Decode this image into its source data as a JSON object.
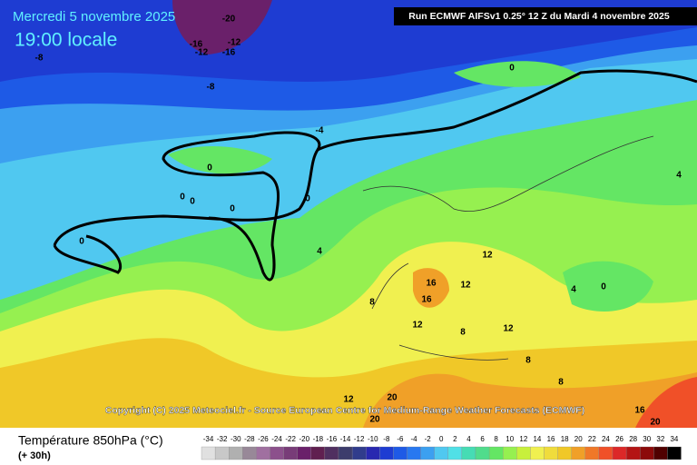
{
  "header": {
    "date": "Mercredi 5 novembre 2025",
    "time": "19:00 locale",
    "run": "Run ECMWF AIFSv1 0.25° 12 Z du Mardi 4 novembre 2025"
  },
  "copyright": "Copyright (C) 2025 Meteociel.fr - Source European Centre for Medium-Range Weather Forecasts (ECMWF)",
  "map_labels": [
    -20,
    -16,
    -12,
    -12,
    -16,
    -8,
    -8,
    -4,
    0,
    0,
    0,
    0,
    0,
    0,
    0,
    4,
    4,
    8,
    12,
    12,
    16,
    16,
    12,
    12,
    8,
    8,
    8,
    4,
    0,
    12,
    20,
    20,
    16,
    20
  ],
  "legend": {
    "title": "Température 850hPa (°C)",
    "subtitle": "(+ 30h)",
    "scale": [
      -34,
      -32,
      -30,
      -28,
      -26,
      -24,
      -22,
      -20,
      -18,
      -16,
      -14,
      -12,
      -10,
      -8,
      -6,
      -4,
      -2,
      0,
      2,
      4,
      6,
      8,
      10,
      12,
      14,
      16,
      18,
      20,
      22,
      24,
      26,
      28,
      30,
      32,
      34
    ],
    "colors": [
      "#e0e0e0",
      "#c8c8c8",
      "#b0b0b0",
      "#988898",
      "#a070a0",
      "#8c508c",
      "#783c78",
      "#6a206a",
      "#602050",
      "#503060",
      "#3c3c6c",
      "#303c8c",
      "#2828b0",
      "#1e3cd2",
      "#1e5ae6",
      "#2878f0",
      "#3ca0f0",
      "#50c8f0",
      "#50e0e6",
      "#46dcb4",
      "#50dc8c",
      "#64e664",
      "#96f050",
      "#c8f03c",
      "#f0f050",
      "#f0dc3c",
      "#f0c828",
      "#f0a028",
      "#f07828",
      "#f05028",
      "#dc2828",
      "#b41414",
      "#8c0a0a",
      "#500000",
      "#000000"
    ]
  }
}
